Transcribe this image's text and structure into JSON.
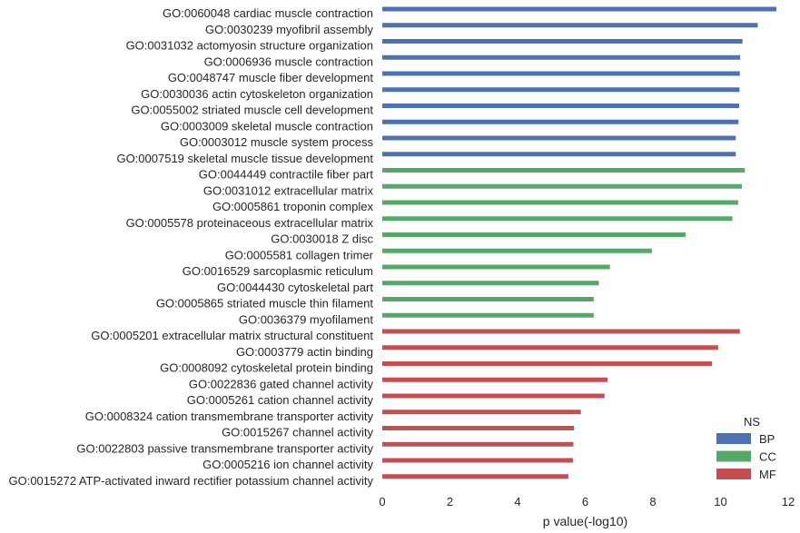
{
  "chart_data": {
    "type": "bar",
    "orientation": "horizontal",
    "xlabel": "p value(-log10)",
    "ylabel": "",
    "xlim": [
      0,
      12
    ],
    "xticks": [
      "0",
      "2",
      "4",
      "6",
      "8",
      "10",
      "12"
    ],
    "grid": false,
    "legend": {
      "title": "NS",
      "position": "bottom-right"
    },
    "series": [
      {
        "name": "BP",
        "color": "#4c72b0",
        "categories": [
          "GO:0060048 cardiac muscle contraction",
          "GO:0030239 myofibril assembly",
          "GO:0031032 actomyosin structure organization",
          "GO:0006936 muscle contraction",
          "GO:0048747 muscle fiber development",
          "GO:0030036 actin cytoskeleton organization",
          "GO:0055002 striated muscle cell development",
          "GO:0003009 skeletal muscle contraction",
          "GO:0003012 muscle system process",
          "GO:0007519 skeletal muscle tissue development"
        ],
        "values": [
          11.65,
          11.1,
          10.65,
          10.58,
          10.57,
          10.56,
          10.55,
          10.53,
          10.45,
          10.45
        ]
      },
      {
        "name": "CC",
        "color": "#55a868",
        "categories": [
          "GO:0044449 contractile fiber part",
          "GO:0031012 extracellular matrix",
          "GO:0005861 troponin complex",
          "GO:0005578 proteinaceous extracellular matrix",
          "GO:0030018 Z disc",
          "GO:0005581 collagen trimer",
          "GO:0016529 sarcoplasmic reticulum",
          "GO:0044430 cytoskeletal part",
          "GO:0005865 striated muscle thin filament",
          "GO:0036379 myofilament"
        ],
        "values": [
          10.72,
          10.63,
          10.52,
          10.35,
          8.97,
          7.97,
          6.73,
          6.4,
          6.25,
          6.25
        ]
      },
      {
        "name": "MF",
        "color": "#c44e52",
        "categories": [
          "GO:0005201 extracellular matrix structural constituent",
          "GO:0003779 actin binding",
          "GO:0008092 cytoskeletal protein binding",
          "GO:0022836 gated channel activity",
          "GO:0005261 cation channel activity",
          "GO:0008324 cation transmembrane transporter activity",
          "GO:0015267 channel activity",
          "GO:0022803 passive transmembrane transporter activity",
          "GO:0005216 ion channel activity",
          "GO:0015272 ATP-activated inward rectifier potassium channel activity"
        ],
        "values": [
          10.57,
          9.93,
          9.75,
          6.66,
          6.57,
          5.87,
          5.67,
          5.65,
          5.64,
          5.5
        ]
      }
    ]
  }
}
